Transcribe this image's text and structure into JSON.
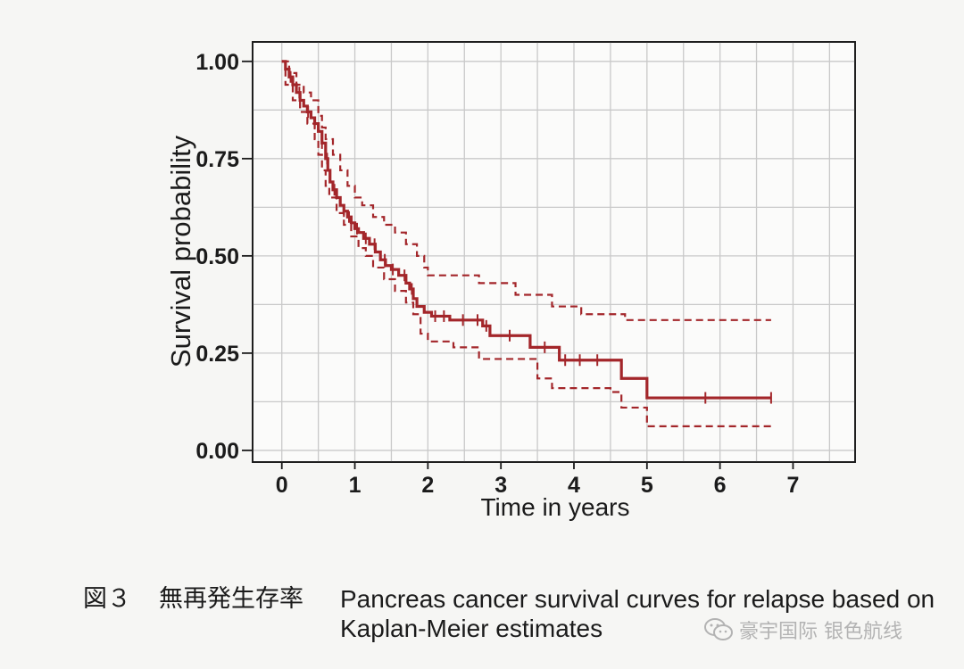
{
  "figure": {
    "caption_label": "図３",
    "caption_title_jp": "無再発生存率",
    "caption_line1": "Pancreas cancer survival curves for relapse based on",
    "caption_line2": "Kaplan-Meier estimates"
  },
  "watermark": {
    "icon": "wechat-icon",
    "text": "豪宇国际 银色航线"
  },
  "chart_data": {
    "type": "line",
    "xlabel": "Time in years",
    "ylabel": "Survival probability",
    "xlim": [
      -0.4,
      7.85
    ],
    "ylim": [
      -0.03,
      1.05
    ],
    "x_ticks": [
      0,
      1,
      2,
      3,
      4,
      5,
      6,
      7
    ],
    "x_tick_labels": [
      "0",
      "1",
      "2",
      "3",
      "4",
      "5",
      "6",
      "7"
    ],
    "y_ticks": [
      0,
      0.25,
      0.5,
      0.75,
      1.0
    ],
    "y_tick_labels": [
      "0.00",
      "0.25",
      "0.50",
      "0.75",
      "1.00"
    ],
    "grid": true,
    "x_minor_step": 0.5,
    "y_minor_step": 0.125,
    "legend": "none",
    "color": "#a3262a",
    "series": [
      {
        "line_style": "solid",
        "step": true,
        "points": [
          [
            0,
            1.0
          ],
          [
            0.05,
            0.98
          ],
          [
            0.1,
            0.96
          ],
          [
            0.15,
            0.94
          ],
          [
            0.2,
            0.92
          ],
          [
            0.25,
            0.9
          ],
          [
            0.3,
            0.885
          ],
          [
            0.35,
            0.87
          ],
          [
            0.4,
            0.855
          ],
          [
            0.45,
            0.84
          ],
          [
            0.5,
            0.82
          ],
          [
            0.55,
            0.79
          ],
          [
            0.6,
            0.75
          ],
          [
            0.63,
            0.72
          ],
          [
            0.66,
            0.69
          ],
          [
            0.7,
            0.67
          ],
          [
            0.75,
            0.65
          ],
          [
            0.8,
            0.63
          ],
          [
            0.85,
            0.615
          ],
          [
            0.9,
            0.6
          ],
          [
            0.95,
            0.585
          ],
          [
            1.0,
            0.57
          ],
          [
            1.05,
            0.56
          ],
          [
            1.12,
            0.545
          ],
          [
            1.2,
            0.53
          ],
          [
            1.28,
            0.51
          ],
          [
            1.35,
            0.49
          ],
          [
            1.42,
            0.475
          ],
          [
            1.5,
            0.465
          ],
          [
            1.6,
            0.45
          ],
          [
            1.7,
            0.43
          ],
          [
            1.75,
            0.415
          ],
          [
            1.8,
            0.39
          ],
          [
            1.85,
            0.37
          ],
          [
            1.95,
            0.355
          ],
          [
            2.05,
            0.345
          ],
          [
            2.3,
            0.335
          ],
          [
            2.75,
            0.32
          ],
          [
            2.85,
            0.295
          ],
          [
            3.4,
            0.265
          ],
          [
            3.8,
            0.232
          ],
          [
            4.65,
            0.185
          ],
          [
            5.0,
            0.135
          ],
          [
            6.7,
            0.135
          ]
        ],
        "censored_times": [
          0.12,
          0.24,
          0.36,
          0.45,
          0.55,
          0.62,
          0.72,
          0.85,
          0.92,
          1.03,
          1.15,
          1.27,
          1.41,
          1.52,
          1.68,
          1.78,
          2.1,
          2.22,
          2.48,
          2.68,
          2.8,
          3.12,
          3.6,
          3.88,
          4.08,
          4.32,
          5.8,
          6.7
        ]
      },
      {
        "line_style": "dashed",
        "step": true,
        "points": [
          [
            0,
            1.0
          ],
          [
            0.1,
            0.97
          ],
          [
            0.2,
            0.94
          ],
          [
            0.3,
            0.92
          ],
          [
            0.4,
            0.9
          ],
          [
            0.5,
            0.86
          ],
          [
            0.55,
            0.83
          ],
          [
            0.6,
            0.8
          ],
          [
            0.7,
            0.76
          ],
          [
            0.8,
            0.72
          ],
          [
            0.9,
            0.68
          ],
          [
            1.0,
            0.65
          ],
          [
            1.1,
            0.63
          ],
          [
            1.25,
            0.6
          ],
          [
            1.4,
            0.58
          ],
          [
            1.55,
            0.56
          ],
          [
            1.7,
            0.53
          ],
          [
            1.85,
            0.5
          ],
          [
            1.95,
            0.47
          ],
          [
            2.0,
            0.45
          ],
          [
            2.7,
            0.43
          ],
          [
            3.2,
            0.4
          ],
          [
            3.7,
            0.37
          ],
          [
            4.1,
            0.35
          ],
          [
            4.7,
            0.335
          ],
          [
            6.7,
            0.335
          ]
        ]
      },
      {
        "line_style": "dashed",
        "step": true,
        "points": [
          [
            0,
            1.0
          ],
          [
            0.05,
            0.94
          ],
          [
            0.15,
            0.9
          ],
          [
            0.25,
            0.87
          ],
          [
            0.35,
            0.84
          ],
          [
            0.45,
            0.8
          ],
          [
            0.5,
            0.76
          ],
          [
            0.55,
            0.72
          ],
          [
            0.6,
            0.68
          ],
          [
            0.65,
            0.65
          ],
          [
            0.75,
            0.61
          ],
          [
            0.85,
            0.58
          ],
          [
            0.95,
            0.55
          ],
          [
            1.05,
            0.52
          ],
          [
            1.15,
            0.5
          ],
          [
            1.25,
            0.47
          ],
          [
            1.4,
            0.44
          ],
          [
            1.55,
            0.41
          ],
          [
            1.7,
            0.38
          ],
          [
            1.8,
            0.35
          ],
          [
            1.9,
            0.3
          ],
          [
            2.0,
            0.28
          ],
          [
            2.35,
            0.265
          ],
          [
            2.7,
            0.235
          ],
          [
            3.5,
            0.185
          ],
          [
            3.7,
            0.16
          ],
          [
            4.5,
            0.15
          ],
          [
            4.65,
            0.11
          ],
          [
            5.0,
            0.062
          ],
          [
            6.7,
            0.062
          ]
        ]
      }
    ]
  }
}
